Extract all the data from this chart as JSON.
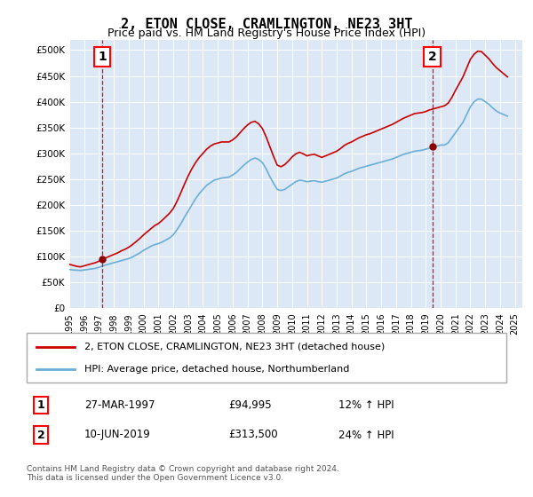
{
  "title": "2, ETON CLOSE, CRAMLINGTON, NE23 3HT",
  "subtitle": "Price paid vs. HM Land Registry's House Price Index (HPI)",
  "legend_line1": "2, ETON CLOSE, CRAMLINGTON, NE23 3HT (detached house)",
  "legend_line2": "HPI: Average price, detached house, Northumberland",
  "annotation1_label": "1",
  "annotation1_date": "27-MAR-1997",
  "annotation1_price": "£94,995",
  "annotation1_hpi": "12% ↑ HPI",
  "annotation1_year": 1997.23,
  "annotation1_value": 94995,
  "annotation2_label": "2",
  "annotation2_date": "10-JUN-2019",
  "annotation2_price": "£313,500",
  "annotation2_hpi": "24% ↑ HPI",
  "annotation2_year": 2019.44,
  "annotation2_value": 313500,
  "footer": "Contains HM Land Registry data © Crown copyright and database right 2024.\nThis data is licensed under the Open Government Licence v3.0.",
  "hpi_color": "#6baed6",
  "price_color": "#cc0000",
  "background_color": "#e8f0f8",
  "plot_background": "#dce8f5",
  "ylim": [
    0,
    520000
  ],
  "yticks": [
    0,
    50000,
    100000,
    150000,
    200000,
    250000,
    300000,
    350000,
    400000,
    450000,
    500000
  ],
  "hpi_data": {
    "years": [
      1995.0,
      1995.25,
      1995.5,
      1995.75,
      1996.0,
      1996.25,
      1996.5,
      1996.75,
      1997.0,
      1997.25,
      1997.5,
      1997.75,
      1998.0,
      1998.25,
      1998.5,
      1998.75,
      1999.0,
      1999.25,
      1999.5,
      1999.75,
      2000.0,
      2000.25,
      2000.5,
      2000.75,
      2001.0,
      2001.25,
      2001.5,
      2001.75,
      2002.0,
      2002.25,
      2002.5,
      2002.75,
      2003.0,
      2003.25,
      2003.5,
      2003.75,
      2004.0,
      2004.25,
      2004.5,
      2004.75,
      2005.0,
      2005.25,
      2005.5,
      2005.75,
      2006.0,
      2006.25,
      2006.5,
      2006.75,
      2007.0,
      2007.25,
      2007.5,
      2007.75,
      2008.0,
      2008.25,
      2008.5,
      2008.75,
      2009.0,
      2009.25,
      2009.5,
      2009.75,
      2010.0,
      2010.25,
      2010.5,
      2010.75,
      2011.0,
      2011.25,
      2011.5,
      2011.75,
      2012.0,
      2012.25,
      2012.5,
      2012.75,
      2013.0,
      2013.25,
      2013.5,
      2013.75,
      2014.0,
      2014.25,
      2014.5,
      2014.75,
      2015.0,
      2015.25,
      2015.5,
      2015.75,
      2016.0,
      2016.25,
      2016.5,
      2016.75,
      2017.0,
      2017.25,
      2017.5,
      2017.75,
      2018.0,
      2018.25,
      2018.5,
      2018.75,
      2019.0,
      2019.25,
      2019.5,
      2019.75,
      2020.0,
      2020.25,
      2020.5,
      2020.75,
      2021.0,
      2021.25,
      2021.5,
      2021.75,
      2022.0,
      2022.25,
      2022.5,
      2022.75,
      2023.0,
      2023.25,
      2023.5,
      2023.75,
      2024.0,
      2024.25,
      2024.5
    ],
    "values": [
      75000,
      74000,
      73500,
      73000,
      74000,
      75000,
      76000,
      77000,
      79000,
      82000,
      84000,
      86000,
      88000,
      90000,
      92000,
      94000,
      96000,
      99000,
      103000,
      107000,
      112000,
      116000,
      120000,
      123000,
      125000,
      128000,
      132000,
      136000,
      142000,
      152000,
      163000,
      176000,
      188000,
      200000,
      212000,
      222000,
      230000,
      238000,
      243000,
      248000,
      250000,
      252000,
      253000,
      254000,
      258000,
      263000,
      270000,
      277000,
      283000,
      288000,
      291000,
      288000,
      282000,
      270000,
      255000,
      242000,
      230000,
      228000,
      230000,
      235000,
      240000,
      245000,
      248000,
      247000,
      245000,
      246000,
      247000,
      245000,
      244000,
      246000,
      248000,
      250000,
      252000,
      256000,
      260000,
      263000,
      265000,
      268000,
      271000,
      273000,
      275000,
      277000,
      279000,
      281000,
      283000,
      285000,
      287000,
      289000,
      292000,
      295000,
      298000,
      300000,
      302000,
      304000,
      305000,
      306000,
      308000,
      310000,
      312000,
      314000,
      316000,
      316000,
      320000,
      330000,
      340000,
      350000,
      360000,
      375000,
      390000,
      400000,
      405000,
      405000,
      400000,
      395000,
      388000,
      382000,
      378000,
      375000,
      372000
    ]
  },
  "hpi_projected": {
    "years": [
      2020.0,
      2020.25,
      2020.5,
      2020.75,
      2021.0,
      2021.25,
      2021.5,
      2021.75,
      2022.0,
      2022.25,
      2022.5,
      2022.75,
      2023.0,
      2023.25,
      2023.5,
      2023.75,
      2024.0,
      2024.25,
      2024.5
    ],
    "values": [
      316000,
      316000,
      320000,
      330000,
      340000,
      350000,
      360000,
      375000,
      390000,
      400000,
      405000,
      405000,
      400000,
      395000,
      388000,
      382000,
      378000,
      375000,
      372000
    ]
  },
  "price_data": {
    "years": [
      1995.0,
      1995.25,
      1995.5,
      1995.75,
      1996.0,
      1996.25,
      1996.5,
      1996.75,
      1997.0,
      1997.25,
      1997.5,
      1997.75,
      1998.0,
      1998.25,
      1998.5,
      1998.75,
      1999.0,
      1999.25,
      1999.5,
      1999.75,
      2000.0,
      2000.25,
      2000.5,
      2000.75,
      2001.0,
      2001.25,
      2001.5,
      2001.75,
      2002.0,
      2002.25,
      2002.5,
      2002.75,
      2003.0,
      2003.25,
      2003.5,
      2003.75,
      2004.0,
      2004.25,
      2004.5,
      2004.75,
      2005.0,
      2005.25,
      2005.5,
      2005.75,
      2006.0,
      2006.25,
      2006.5,
      2006.75,
      2007.0,
      2007.25,
      2007.5,
      2007.75,
      2008.0,
      2008.25,
      2008.5,
      2008.75,
      2009.0,
      2009.25,
      2009.5,
      2009.75,
      2010.0,
      2010.25,
      2010.5,
      2010.75,
      2011.0,
      2011.25,
      2011.5,
      2011.75,
      2012.0,
      2012.25,
      2012.5,
      2012.75,
      2013.0,
      2013.25,
      2013.5,
      2013.75,
      2014.0,
      2014.25,
      2014.5,
      2014.75,
      2015.0,
      2015.25,
      2015.5,
      2015.75,
      2016.0,
      2016.25,
      2016.5,
      2016.75,
      2017.0,
      2017.25,
      2017.5,
      2017.75,
      2018.0,
      2018.25,
      2018.5,
      2018.75,
      2019.0,
      2019.25,
      2019.5,
      2019.75,
      2020.0,
      2020.25,
      2020.5,
      2020.75,
      2021.0,
      2021.25,
      2021.5,
      2021.75,
      2022.0,
      2022.25,
      2022.5,
      2022.75,
      2023.0,
      2023.25,
      2023.5,
      2023.75,
      2024.0,
      2024.25,
      2024.5
    ],
    "values": [
      85000,
      83000,
      81000,
      80000,
      82000,
      84000,
      86000,
      88000,
      91000,
      95000,
      98000,
      101000,
      104000,
      107000,
      111000,
      114000,
      118000,
      123000,
      129000,
      135000,
      142000,
      148000,
      154000,
      160000,
      164000,
      170000,
      177000,
      184000,
      193000,
      207000,
      223000,
      240000,
      256000,
      270000,
      282000,
      292000,
      300000,
      308000,
      314000,
      318000,
      320000,
      322000,
      322000,
      322000,
      326000,
      332000,
      340000,
      348000,
      355000,
      360000,
      362000,
      357000,
      348000,
      332000,
      313000,
      294000,
      277000,
      274000,
      278000,
      285000,
      293000,
      299000,
      302000,
      299000,
      295000,
      297000,
      298000,
      295000,
      292000,
      295000,
      298000,
      301000,
      304000,
      309000,
      315000,
      319000,
      322000,
      326000,
      330000,
      333000,
      336000,
      338000,
      341000,
      344000,
      347000,
      350000,
      353000,
      356000,
      360000,
      364000,
      368000,
      371000,
      374000,
      377000,
      378000,
      379000,
      381000,
      384000,
      386000,
      388000,
      390000,
      392000,
      397000,
      408000,
      422000,
      435000,
      448000,
      465000,
      482000,
      492000,
      498000,
      497000,
      490000,
      483000,
      474000,
      466000,
      460000,
      454000,
      448000
    ]
  }
}
